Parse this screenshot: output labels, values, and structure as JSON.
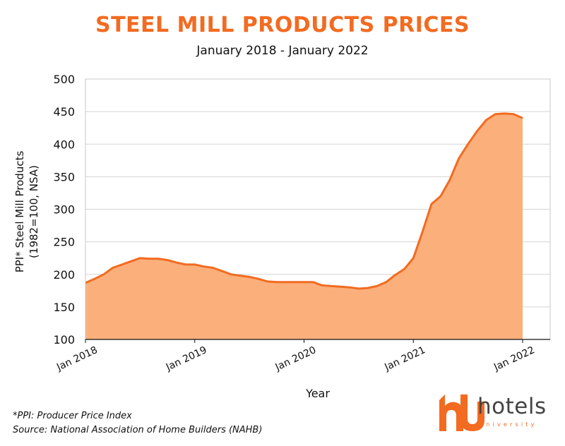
{
  "chart_data": {
    "type": "area",
    "title": "STEEL MILL PRODUCTS PRICES",
    "subtitle": "January 2018 - January 2022",
    "xlabel": "Year",
    "ylabel_lines": [
      "PPI* Steel Mill Products",
      "(1982=100, NSA)"
    ],
    "ylim": [
      100,
      500
    ],
    "yticks": [
      100,
      150,
      200,
      250,
      300,
      350,
      400,
      450,
      500
    ],
    "xlim": [
      0,
      48
    ],
    "xtick_labels": [
      "Jan 2018",
      "Jan 2019",
      "Jan 2020",
      "Jan 2021",
      "Jan 2022"
    ],
    "xtick_positions": [
      0,
      12,
      24,
      36,
      48
    ],
    "grid": true,
    "series": [
      {
        "x": [
          0,
          1,
          2,
          3,
          4,
          5,
          6,
          7,
          8,
          9,
          10,
          11,
          12,
          13,
          14,
          15,
          16,
          17,
          18,
          19,
          20,
          21,
          22,
          23,
          24,
          25,
          26,
          27,
          28,
          29,
          30,
          31,
          32,
          33,
          34,
          35,
          36,
          37,
          38,
          39,
          40,
          41,
          42,
          43,
          44,
          45,
          46,
          47,
          48
        ],
        "values": [
          187,
          193,
          200,
          210,
          215,
          220,
          225,
          224,
          224,
          222,
          218,
          215,
          215,
          212,
          210,
          205,
          200,
          198,
          196,
          193,
          189,
          188,
          188,
          188,
          188,
          188,
          183,
          182,
          181,
          180,
          178,
          179,
          182,
          188,
          199,
          208,
          225,
          265,
          308,
          320,
          345,
          378,
          400,
          420,
          437,
          446,
          447,
          446,
          440
        ]
      }
    ],
    "colors": {
      "fill": "#fbb07c",
      "line": "#f26b21",
      "title": "#f26b21",
      "grid": "#d4d4d4"
    }
  },
  "footnotes": {
    "ppi": "*PPI: Producer Price Index",
    "source": "Source: National Association of Home Builders (NAHB)"
  },
  "brand": {
    "name": "hotels",
    "sub": "university",
    "accent": "#f26b21"
  }
}
